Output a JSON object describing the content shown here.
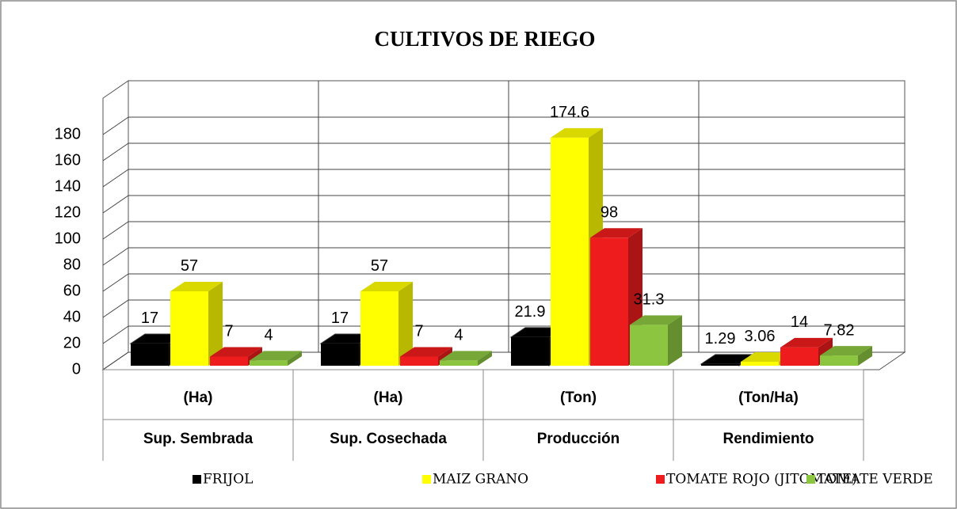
{
  "chart_data": {
    "type": "bar3d",
    "title": "CULTIVOS DE RIEGO",
    "categories": [
      "Sup. Sembrada",
      "Sup. Cosechada",
      "Producción",
      "Rendimiento"
    ],
    "category_units": [
      "(Ha)",
      "(Ha)",
      "(Ton)",
      "(Ton/Ha)"
    ],
    "series": [
      {
        "name": "FRIJOL",
        "color": "#000000",
        "values": [
          17,
          17,
          21.9,
          1.29
        ]
      },
      {
        "name": "MAIZ GRANO",
        "color": "#ffff00",
        "values": [
          57,
          57,
          174.6,
          3.06
        ]
      },
      {
        "name": "TOMATE ROJO (JITOMATE)",
        "color": "#ee1c1c",
        "values": [
          7,
          7,
          98,
          14
        ]
      },
      {
        "name": "TOMATE VERDE",
        "color": "#8cc540",
        "values": [
          4,
          4,
          31.3,
          7.82
        ]
      }
    ],
    "ylim": [
      0,
      200
    ],
    "yticks": [
      0,
      20,
      40,
      60,
      80,
      100,
      120,
      140,
      160,
      180
    ],
    "grid": true
  }
}
